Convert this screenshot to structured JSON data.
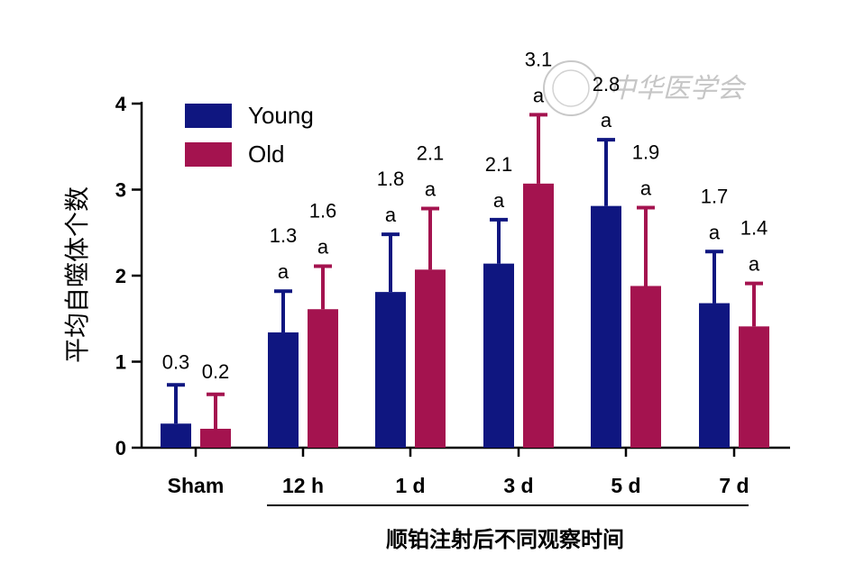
{
  "chart_data": {
    "type": "bar",
    "categories": [
      "Sham",
      "12 h",
      "1 d",
      "3 d",
      "5 d",
      "7 d"
    ],
    "series": [
      {
        "name": "Young",
        "color": "#0f1680",
        "values": [
          0.28,
          1.34,
          1.81,
          2.14,
          2.81,
          1.68
        ],
        "errors": [
          0.45,
          0.48,
          0.67,
          0.51,
          0.77,
          0.6
        ],
        "value_labels": [
          "0.3",
          "1.3",
          "1.8",
          "2.1",
          "2.8",
          "1.7"
        ],
        "sig_labels": [
          "",
          "a",
          "a",
          "a",
          "a",
          "a"
        ]
      },
      {
        "name": "Old",
        "color": "#a4134f",
        "values": [
          0.22,
          1.61,
          2.07,
          3.07,
          1.88,
          1.41
        ],
        "errors": [
          0.4,
          0.5,
          0.71,
          0.8,
          0.91,
          0.5
        ],
        "value_labels": [
          "0.2",
          "1.6",
          "2.1",
          "3.1",
          "1.9",
          "1.4"
        ],
        "sig_labels": [
          "",
          "a",
          "a",
          "a",
          "a",
          "a"
        ]
      }
    ],
    "ylim": [
      0,
      4
    ],
    "yticks": [
      "0",
      "1",
      "2",
      "3",
      "4"
    ],
    "ylabel": "平均自噬体个数",
    "xlabel": "顺铂注射后不同观察时间",
    "legend_position": "top-left",
    "grid": false
  },
  "watermark": {
    "text": "中华医学会"
  }
}
